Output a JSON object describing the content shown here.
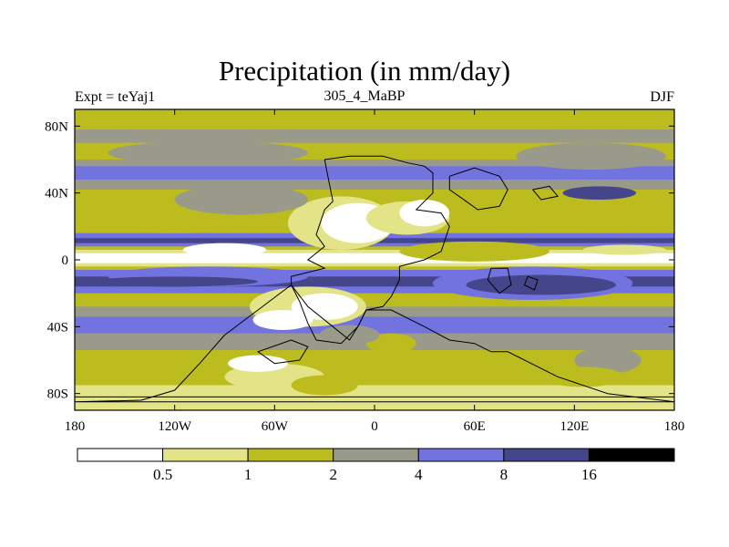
{
  "chart_data": {
    "type": "heatmap",
    "title": "Precipitation (in mm/day)",
    "subtitle_left": "Expt = teYaj1",
    "subtitle_center": "305_4_MaBP",
    "subtitle_right": "DJF",
    "x_range": [
      -180,
      180
    ],
    "y_range": [
      -90,
      90
    ],
    "x_ticks": [
      {
        "value": -180,
        "label": "180"
      },
      {
        "value": -120,
        "label": "120W"
      },
      {
        "value": -60,
        "label": "60W"
      },
      {
        "value": 0,
        "label": "0"
      },
      {
        "value": 60,
        "label": "60E"
      },
      {
        "value": 120,
        "label": "120E"
      },
      {
        "value": 180,
        "label": "180"
      }
    ],
    "y_ticks": [
      {
        "value": 80,
        "label": "80N"
      },
      {
        "value": 40,
        "label": "40N"
      },
      {
        "value": 0,
        "label": "0"
      },
      {
        "value": -40,
        "label": "40S"
      },
      {
        "value": -80,
        "label": "80S"
      }
    ],
    "levels": [
      0.5,
      1,
      2,
      4,
      8,
      16
    ],
    "level_labels": [
      "0.5",
      "1",
      "2",
      "4",
      "8",
      "16"
    ],
    "colors": [
      "#ffffff",
      "#e3e387",
      "#bcbc1e",
      "#9a9a8a",
      "#7373e0",
      "#45458c",
      "#000000"
    ],
    "outline_color": "#000000"
  }
}
